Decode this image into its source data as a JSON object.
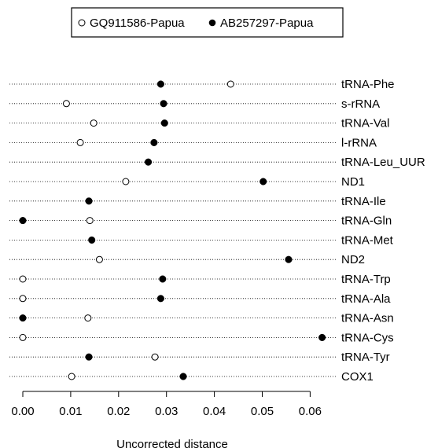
{
  "chart_data": {
    "type": "scatter",
    "title": "",
    "xlabel": "Uncorrected distance",
    "ylabel": "",
    "xlim": [
      0,
      0.065
    ],
    "x_ticks": [
      "0.00",
      "0.01",
      "0.02",
      "0.03",
      "0.04",
      "0.05",
      "0.06"
    ],
    "grid": "dotted guide line per category",
    "legend_position": "top-center",
    "categories": [
      "tRNA-Phe",
      "s-rRNA",
      "tRNA-Val",
      "l-rRNA",
      "tRNA-Leu_UUR",
      "ND1",
      "tRNA-Ile",
      "tRNA-Gln",
      "tRNA-Met",
      "ND2",
      "tRNA-Trp",
      "tRNA-Ala",
      "tRNA-Asn",
      "tRNA-Cys",
      "tRNA-Tyr",
      "COX1"
    ],
    "series": [
      {
        "name": "GQ911586-Papua",
        "marker": "open-circle",
        "values": [
          0.0434,
          0.0091,
          0.0148,
          0.012,
          null,
          0.0215,
          null,
          0.014,
          null,
          0.016,
          0.0,
          0.0,
          0.0136,
          0.0,
          0.0276,
          0.0102
        ]
      },
      {
        "name": "AB257297-Papua",
        "marker": "filled-circle",
        "values": [
          0.0288,
          0.0294,
          0.0296,
          0.0274,
          0.0262,
          0.0502,
          0.0138,
          0.0,
          0.0144,
          0.0555,
          0.0292,
          0.0288,
          0.0,
          0.0625,
          0.0138,
          0.0335
        ]
      }
    ]
  }
}
